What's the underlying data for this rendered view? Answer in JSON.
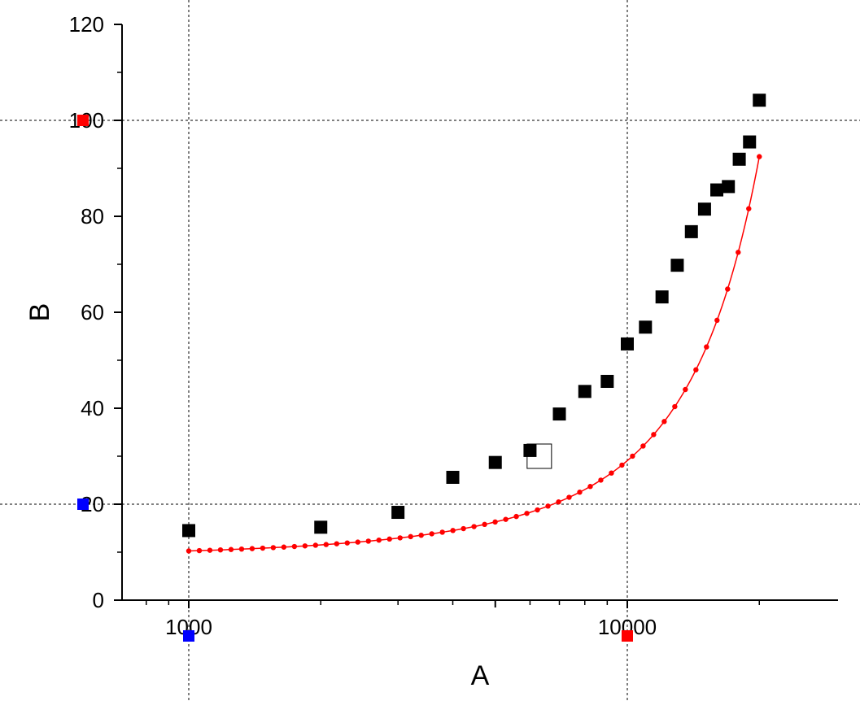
{
  "chart_data": {
    "type": "scatter",
    "title": "",
    "xlabel": "A",
    "ylabel": "B",
    "x_scale": "log",
    "xlim": [
      700,
      26000
    ],
    "ylim": [
      0,
      120
    ],
    "x_ticks": [
      {
        "value": 1000,
        "label": "1000"
      },
      {
        "value": 10000,
        "label": "10000"
      }
    ],
    "y_ticks": [
      {
        "value": 0,
        "label": "0"
      },
      {
        "value": 20,
        "label": "20"
      },
      {
        "value": 40,
        "label": "40"
      },
      {
        "value": 60,
        "label": "60"
      },
      {
        "value": 80,
        "label": "80"
      },
      {
        "value": 100,
        "label": "100"
      },
      {
        "value": 120,
        "label": "120"
      }
    ],
    "grid": {
      "vertical_dotted_at_x": [
        1000,
        10000
      ],
      "horizontal_dotted_at_y": [
        20,
        100
      ]
    },
    "series": [
      {
        "kind": "data-points",
        "marker": "filled-square",
        "color": "#000000",
        "x": [
          1000,
          2000,
          3000,
          4000,
          5000,
          6000,
          7000,
          8000,
          9000,
          10000,
          11000,
          12000,
          13000,
          14000,
          15000,
          16000,
          17000,
          18000,
          19000,
          20000
        ],
        "y": [
          14.5,
          15.2,
          18.3,
          25.6,
          28.7,
          31.2,
          38.8,
          43.5,
          45.6,
          53.4,
          56.9,
          63.2,
          69.8,
          76.8,
          81.5,
          85.5,
          86.2,
          91.9,
          95.5,
          104.2
        ]
      },
      {
        "kind": "fit-curve",
        "color": "#ff0000",
        "marker": "dot",
        "x_start": 1000,
        "x_end": 20000,
        "points": 55,
        "equation": "B = 10.26*exp(0.0001157*(A-1000))"
      }
    ],
    "unlabeled_marks": [
      {
        "description": "hollow square marker",
        "x": 6300,
        "y": 30.0,
        "color": "#000000"
      }
    ],
    "axis_handles": [
      {
        "axis": "y",
        "value": 100,
        "color": "#ff0000"
      },
      {
        "axis": "y",
        "value": 20,
        "color": "#0000ff"
      },
      {
        "axis": "x",
        "value": 1000,
        "color": "#0000ff"
      },
      {
        "axis": "x",
        "value": 10000,
        "color": "#ff0000"
      }
    ]
  }
}
